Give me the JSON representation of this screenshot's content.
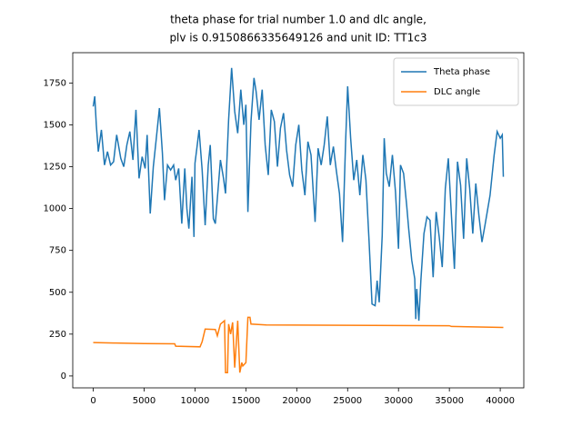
{
  "chart_data": {
    "type": "line",
    "title": [
      "theta phase for trial number 1.0 and dlc angle,",
      "plv is 0.9150866335649126 and unit ID: TT1c3"
    ],
    "xlim": [
      -2015,
      42315
    ],
    "ylim": [
      -71,
      1931
    ],
    "xticks": [
      0,
      5000,
      10000,
      15000,
      20000,
      25000,
      30000,
      35000,
      40000
    ],
    "yticks": [
      0,
      250,
      500,
      750,
      1000,
      1250,
      1500,
      1750
    ],
    "legend": "upper right",
    "series": [
      {
        "name": "Theta phase",
        "color": "#1f77b4",
        "x": [
          0,
          150,
          300,
          500,
          800,
          1100,
          1400,
          1700,
          2000,
          2300,
          2700,
          3000,
          3300,
          3600,
          3900,
          4200,
          4500,
          4800,
          5100,
          5300,
          5600,
          5900,
          6200,
          6500,
          6800,
          7000,
          7300,
          7600,
          7900,
          8100,
          8400,
          8700,
          9000,
          9200,
          9400,
          9700,
          9900,
          10000,
          10200,
          10400,
          10700,
          11000,
          11300,
          11500,
          11800,
          12000,
          12200,
          12500,
          12800,
          13000,
          13300,
          13600,
          13900,
          14200,
          14500,
          14800,
          15000,
          15200,
          15500,
          15800,
          16000,
          16300,
          16600,
          16900,
          17200,
          17500,
          17800,
          18100,
          18400,
          18700,
          19000,
          19300,
          19600,
          19900,
          20200,
          20500,
          20800,
          21100,
          21400,
          21800,
          22100,
          22400,
          22700,
          23000,
          23300,
          23600,
          23900,
          24200,
          24500,
          24800,
          25000,
          25300,
          25600,
          25900,
          26200,
          26500,
          26800,
          27100,
          27400,
          27700,
          27900,
          28100,
          28400,
          28600,
          28800,
          29100,
          29400,
          29700,
          30000,
          30200,
          30500,
          30800,
          31000,
          31300,
          31600,
          31700,
          31800,
          32000,
          32200,
          32500,
          32800,
          33100,
          33400,
          33700,
          34000,
          34300,
          34600,
          34900,
          35200,
          35500,
          35800,
          36100,
          36400,
          36700,
          37000,
          37300,
          37600,
          37900,
          38200,
          38500,
          39000,
          39400,
          39700,
          40000,
          40200,
          40300
        ],
        "values": [
          1610,
          1670,
          1500,
          1340,
          1470,
          1260,
          1340,
          1260,
          1280,
          1440,
          1300,
          1250,
          1380,
          1460,
          1290,
          1590,
          1180,
          1310,
          1240,
          1440,
          970,
          1250,
          1420,
          1600,
          1330,
          1050,
          1260,
          1230,
          1260,
          1170,
          1240,
          910,
          1240,
          1000,
          880,
          1190,
          830,
          1270,
          1370,
          1470,
          1230,
          900,
          1260,
          1380,
          940,
          910,
          1060,
          1290,
          1180,
          1090,
          1530,
          1840,
          1580,
          1450,
          1710,
          1500,
          1620,
          980,
          1520,
          1780,
          1700,
          1530,
          1710,
          1380,
          1200,
          1590,
          1520,
          1250,
          1480,
          1570,
          1350,
          1200,
          1130,
          1380,
          1500,
          1230,
          1080,
          1400,
          1320,
          920,
          1360,
          1260,
          1380,
          1550,
          1260,
          1370,
          1220,
          1090,
          800,
          1390,
          1730,
          1420,
          1170,
          1290,
          1080,
          1320,
          1170,
          810,
          430,
          420,
          570,
          440,
          840,
          1420,
          1210,
          1130,
          1320,
          1100,
          760,
          1260,
          1210,
          1020,
          880,
          690,
          580,
          340,
          520,
          330,
          570,
          850,
          950,
          930,
          590,
          980,
          830,
          650,
          1120,
          1300,
          960,
          640,
          1280,
          1140,
          820,
          1300,
          1120,
          850,
          1150,
          960,
          800,
          900,
          1080,
          1320,
          1460,
          1420,
          1440,
          1190
        ]
      },
      {
        "name": "DLC angle",
        "color": "#ff7f0e",
        "x": [
          0,
          2000,
          5000,
          8000,
          8100,
          10500,
          10700,
          11000,
          12000,
          12200,
          12500,
          12900,
          13000,
          13200,
          13300,
          13500,
          13700,
          13900,
          14200,
          14400,
          14600,
          14700,
          15000,
          15200,
          15400,
          15500,
          17000,
          25000,
          35000,
          35200,
          40300
        ],
        "values": [
          200,
          197,
          194,
          192,
          178,
          174,
          205,
          280,
          278,
          240,
          310,
          330,
          20,
          20,
          310,
          250,
          320,
          50,
          330,
          20,
          80,
          60,
          80,
          350,
          350,
          310,
          305,
          303,
          300,
          296,
          290
        ]
      }
    ]
  }
}
